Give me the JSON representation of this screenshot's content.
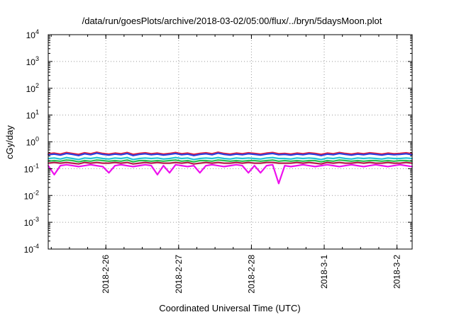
{
  "chart_data": {
    "type": "line",
    "title": "/data/run/goesPlots/archive/2018-03-02/05:00/flux/../bryn/5daysMoon.plot",
    "xlabel": "Coordinated Universal Time (UTC)",
    "ylabel": "cGy/day",
    "yscale": "log",
    "ylim": [
      0.0001,
      10000
    ],
    "yticks": [
      {
        "value": 0.0001,
        "base": "10",
        "exp": "-4"
      },
      {
        "value": 0.001,
        "base": "10",
        "exp": "-3"
      },
      {
        "value": 0.01,
        "base": "10",
        "exp": "-2"
      },
      {
        "value": 0.1,
        "base": "10",
        "exp": "-1"
      },
      {
        "value": 1,
        "base": "10",
        "exp": "0"
      },
      {
        "value": 10,
        "base": "10",
        "exp": "1"
      },
      {
        "value": 100,
        "base": "10",
        "exp": "2"
      },
      {
        "value": 1000,
        "base": "10",
        "exp": "3"
      },
      {
        "value": 10000,
        "base": "10",
        "exp": "4"
      }
    ],
    "xlim": [
      "2018-02-25 05:00",
      "2018-03-02 05:00"
    ],
    "xticks": [
      {
        "value": "2018-02-26 00:00",
        "label": "2018-2-26"
      },
      {
        "value": "2018-02-27 00:00",
        "label": "2018-2-27"
      },
      {
        "value": "2018-02-28 00:00",
        "label": "2018-2-28"
      },
      {
        "value": "2018-03-01 00:00",
        "label": "2018-3-1"
      },
      {
        "value": "2018-03-02 00:00",
        "label": "2018-3-2"
      }
    ],
    "grid": true,
    "series": [
      {
        "color": "#e8203a",
        "values": [
          0.36,
          0.38,
          0.35,
          0.4,
          0.37,
          0.34,
          0.39,
          0.36,
          0.41,
          0.37,
          0.35,
          0.38,
          0.36,
          0.4,
          0.34,
          0.37,
          0.39,
          0.36,
          0.38,
          0.35,
          0.37,
          0.4,
          0.36,
          0.38,
          0.34,
          0.37,
          0.39,
          0.36,
          0.41,
          0.37,
          0.35,
          0.38,
          0.36,
          0.39,
          0.37,
          0.35,
          0.38,
          0.4,
          0.36,
          0.37,
          0.35,
          0.38,
          0.36,
          0.39,
          0.37,
          0.34,
          0.38,
          0.36,
          0.4,
          0.37,
          0.35,
          0.38,
          0.36,
          0.39,
          0.37,
          0.35,
          0.38,
          0.36,
          0.37,
          0.39,
          0.36
        ]
      },
      {
        "color": "#2a3ee0",
        "values": [
          0.33,
          0.35,
          0.32,
          0.37,
          0.34,
          0.31,
          0.36,
          0.33,
          0.38,
          0.34,
          0.32,
          0.35,
          0.33,
          0.37,
          0.31,
          0.34,
          0.36,
          0.33,
          0.35,
          0.32,
          0.34,
          0.37,
          0.33,
          0.35,
          0.31,
          0.34,
          0.36,
          0.33,
          0.38,
          0.34,
          0.32,
          0.35,
          0.33,
          0.36,
          0.34,
          0.32,
          0.35,
          0.37,
          0.33,
          0.34,
          0.32,
          0.35,
          0.33,
          0.36,
          0.34,
          0.31,
          0.35,
          0.33,
          0.37,
          0.34,
          0.32,
          0.35,
          0.33,
          0.36,
          0.34,
          0.32,
          0.35,
          0.33,
          0.34,
          0.36,
          0.33
        ]
      },
      {
        "color": "#22c4d6",
        "values": [
          0.24,
          0.25,
          0.23,
          0.26,
          0.24,
          0.22,
          0.25,
          0.24,
          0.26,
          0.24,
          0.23,
          0.25,
          0.24,
          0.26,
          0.22,
          0.24,
          0.25,
          0.24,
          0.25,
          0.23,
          0.24,
          0.26,
          0.24,
          0.25,
          0.22,
          0.24,
          0.25,
          0.24,
          0.26,
          0.24,
          0.23,
          0.25,
          0.24,
          0.25,
          0.24,
          0.23,
          0.25,
          0.26,
          0.24,
          0.24,
          0.23,
          0.25,
          0.24,
          0.25,
          0.24,
          0.22,
          0.25,
          0.24,
          0.26,
          0.24,
          0.23,
          0.25,
          0.24,
          0.25,
          0.24,
          0.23,
          0.25,
          0.24,
          0.24,
          0.25,
          0.24
        ]
      },
      {
        "color": "#27c24f",
        "values": [
          0.19,
          0.2,
          0.19,
          0.21,
          0.2,
          0.18,
          0.2,
          0.19,
          0.21,
          0.2,
          0.19,
          0.2,
          0.19,
          0.21,
          0.18,
          0.2,
          0.2,
          0.19,
          0.2,
          0.19,
          0.2,
          0.21,
          0.19,
          0.2,
          0.18,
          0.2,
          0.2,
          0.19,
          0.21,
          0.2,
          0.19,
          0.2,
          0.19,
          0.2,
          0.2,
          0.19,
          0.2,
          0.21,
          0.19,
          0.2,
          0.19,
          0.2,
          0.19,
          0.2,
          0.2,
          0.18,
          0.2,
          0.19,
          0.21,
          0.2,
          0.19,
          0.2,
          0.19,
          0.2,
          0.2,
          0.19,
          0.2,
          0.19,
          0.2,
          0.2,
          0.19
        ]
      },
      {
        "color": "#b51c4a",
        "values": [
          0.16,
          0.17,
          0.16,
          0.17,
          0.16,
          0.15,
          0.17,
          0.16,
          0.17,
          0.16,
          0.16,
          0.17,
          0.16,
          0.17,
          0.15,
          0.16,
          0.17,
          0.16,
          0.17,
          0.16,
          0.16,
          0.17,
          0.16,
          0.17,
          0.15,
          0.16,
          0.17,
          0.16,
          0.17,
          0.16,
          0.16,
          0.17,
          0.16,
          0.17,
          0.16,
          0.16,
          0.17,
          0.17,
          0.16,
          0.16,
          0.16,
          0.17,
          0.16,
          0.17,
          0.16,
          0.15,
          0.17,
          0.16,
          0.17,
          0.16,
          0.16,
          0.17,
          0.16,
          0.17,
          0.16,
          0.16,
          0.17,
          0.16,
          0.16,
          0.17,
          0.16
        ]
      },
      {
        "color": "#ee10ee",
        "values": [
          0.13,
          0.06,
          0.13,
          0.14,
          0.13,
          0.12,
          0.13,
          0.14,
          0.13,
          0.12,
          0.07,
          0.13,
          0.14,
          0.13,
          0.12,
          0.13,
          0.14,
          0.13,
          0.06,
          0.13,
          0.07,
          0.14,
          0.13,
          0.12,
          0.13,
          0.07,
          0.13,
          0.14,
          0.13,
          0.12,
          0.13,
          0.14,
          0.13,
          0.07,
          0.13,
          0.07,
          0.13,
          0.14,
          0.028,
          0.13,
          0.12,
          0.13,
          0.14,
          0.13,
          0.12,
          0.13,
          0.14,
          0.13,
          0.12,
          0.13,
          0.14,
          0.13,
          0.12,
          0.13,
          0.14,
          0.13,
          0.12,
          0.13,
          0.14,
          0.13,
          0.12
        ]
      }
    ]
  }
}
